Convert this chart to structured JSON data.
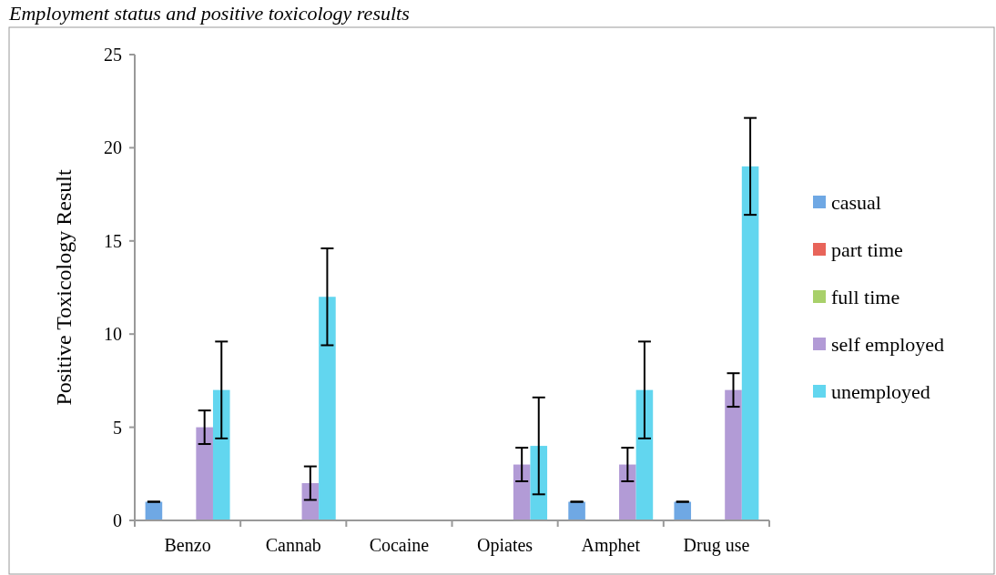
{
  "chart_data": {
    "type": "bar",
    "title": "Employment status and positive toxicology results",
    "ylabel": "Positive Toxicology Result",
    "categories": [
      "Benzo",
      "Cannab",
      "Cocaine",
      "Opiates",
      "Amphet",
      "Drug use"
    ],
    "series": [
      {
        "name": "casual",
        "color": "#6fa8e4",
        "values": [
          1,
          0,
          0,
          0,
          1,
          1
        ],
        "errors": [
          0,
          null,
          null,
          null,
          0,
          0
        ]
      },
      {
        "name": "part time",
        "color": "#e8645a",
        "values": [
          0,
          0,
          0,
          0,
          0,
          0
        ]
      },
      {
        "name": "full time",
        "color": "#a8d06a",
        "values": [
          0,
          0,
          0,
          0,
          0,
          0
        ]
      },
      {
        "name": "self employed",
        "color": "#b29bd6",
        "values": [
          5,
          2,
          0,
          3,
          3,
          7
        ],
        "errors": [
          0.9,
          0.9,
          null,
          0.9,
          0.9,
          0.9
        ]
      },
      {
        "name": "unemployed",
        "color": "#62d6ef",
        "values": [
          7,
          12,
          0,
          4,
          7,
          19
        ],
        "errors": [
          2.6,
          2.6,
          null,
          2.6,
          2.6,
          2.6
        ]
      }
    ],
    "ylim": [
      0,
      25
    ],
    "yticks": [
      0,
      5,
      10,
      15,
      20,
      25
    ],
    "grid": false,
    "legend": "right"
  }
}
